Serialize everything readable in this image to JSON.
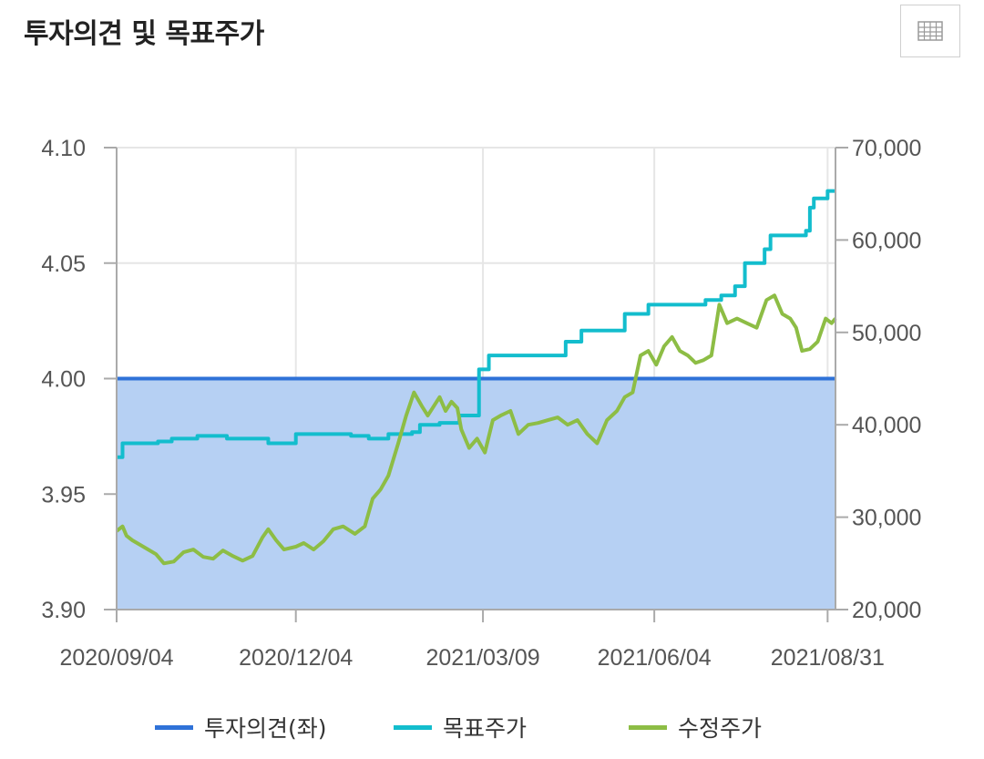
{
  "header": {
    "title": "투자의견 및 목표주가",
    "table_icon": "table-grid-icon"
  },
  "colors": {
    "opinion": "#2f72d8",
    "opinion_fill": "#b6d0f3",
    "target": "#13bdcd",
    "price": "#8dbd45",
    "grid": "#e6e6e6",
    "axis": "#aaaaaa"
  },
  "chart_data": {
    "type": "line",
    "title": "투자의견 및 목표주가",
    "x_ticks": [
      "2020/09/04",
      "2020/12/04",
      "2021/03/09",
      "2021/06/04",
      "2021/08/31"
    ],
    "x_range": [
      "2020/09/04",
      "2021/09/04"
    ],
    "y_left": {
      "ticks": [
        "4.10",
        "4.05",
        "4.00",
        "3.95",
        "3.90"
      ],
      "range": [
        3.9,
        4.1
      ]
    },
    "y_right": {
      "ticks": [
        "70,000",
        "60,000",
        "50,000",
        "40,000",
        "30,000",
        "20,000"
      ],
      "range": [
        20000,
        70000
      ]
    },
    "grid": true,
    "legend_position": "bottom",
    "series": [
      {
        "name": "투자의견(좌)",
        "axis": "left",
        "style": "area",
        "points": [
          [
            "2020/09/04",
            4.0
          ],
          [
            "2021/09/04",
            4.0
          ]
        ]
      },
      {
        "name": "목표주가",
        "axis": "right",
        "style": "step",
        "points": [
          [
            "2020/09/04",
            36500
          ],
          [
            "2020/09/07",
            38000
          ],
          [
            "2020/09/25",
            38200
          ],
          [
            "2020/10/02",
            38500
          ],
          [
            "2020/10/15",
            38800
          ],
          [
            "2020/10/30",
            38500
          ],
          [
            "2020/11/20",
            38000
          ],
          [
            "2020/12/04",
            39000
          ],
          [
            "2021/01/01",
            38800
          ],
          [
            "2021/01/10",
            38500
          ],
          [
            "2021/01/20",
            39000
          ],
          [
            "2021/02/01",
            39200
          ],
          [
            "2021/02/05",
            40000
          ],
          [
            "2021/02/15",
            40200
          ],
          [
            "2021/02/25",
            41000
          ],
          [
            "2021/03/05",
            41000
          ],
          [
            "2021/03/07",
            46000
          ],
          [
            "2021/03/12",
            47500
          ],
          [
            "2021/04/15",
            47500
          ],
          [
            "2021/04/20",
            49000
          ],
          [
            "2021/04/28",
            50200
          ],
          [
            "2021/05/20",
            52000
          ],
          [
            "2021/06/01",
            53000
          ],
          [
            "2021/06/30",
            53500
          ],
          [
            "2021/07/08",
            54000
          ],
          [
            "2021/07/15",
            55000
          ],
          [
            "2021/07/20",
            57500
          ],
          [
            "2021/07/30",
            59000
          ],
          [
            "2021/08/02",
            60500
          ],
          [
            "2021/08/20",
            61000
          ],
          [
            "2021/08/22",
            63500
          ],
          [
            "2021/08/24",
            64500
          ],
          [
            "2021/08/31",
            65300
          ],
          [
            "2021/09/04",
            65300
          ]
        ]
      },
      {
        "name": "수정주가",
        "axis": "right",
        "style": "line",
        "points": [
          [
            "2020/09/04",
            28500
          ],
          [
            "2020/09/07",
            29000
          ],
          [
            "2020/09/09",
            28000
          ],
          [
            "2020/09/12",
            27500
          ],
          [
            "2020/09/16",
            27000
          ],
          [
            "2020/09/20",
            26500
          ],
          [
            "2020/09/24",
            26000
          ],
          [
            "2020/09/28",
            25000
          ],
          [
            "2020/10/03",
            25200
          ],
          [
            "2020/10/08",
            26200
          ],
          [
            "2020/10/13",
            26500
          ],
          [
            "2020/10/18",
            25700
          ],
          [
            "2020/10/23",
            25500
          ],
          [
            "2020/10/28",
            26400
          ],
          [
            "2020/11/02",
            25800
          ],
          [
            "2020/11/07",
            25300
          ],
          [
            "2020/11/12",
            25800
          ],
          [
            "2020/11/17",
            27800
          ],
          [
            "2020/11/20",
            28700
          ],
          [
            "2020/11/24",
            27500
          ],
          [
            "2020/11/28",
            26500
          ],
          [
            "2020/12/04",
            26800
          ],
          [
            "2020/12/08",
            27200
          ],
          [
            "2020/12/13",
            26500
          ],
          [
            "2020/12/18",
            27400
          ],
          [
            "2020/12/23",
            28700
          ],
          [
            "2020/12/28",
            29000
          ],
          [
            "2021/01/03",
            28200
          ],
          [
            "2021/01/08",
            29000
          ],
          [
            "2021/01/12",
            32000
          ],
          [
            "2021/01/16",
            33000
          ],
          [
            "2021/01/20",
            34500
          ],
          [
            "2021/01/25",
            38000
          ],
          [
            "2021/01/29",
            41000
          ],
          [
            "2021/02/02",
            43500
          ],
          [
            "2021/02/06",
            42000
          ],
          [
            "2021/02/09",
            41000
          ],
          [
            "2021/02/12",
            42000
          ],
          [
            "2021/02/15",
            43000
          ],
          [
            "2021/02/18",
            41500
          ],
          [
            "2021/02/21",
            42500
          ],
          [
            "2021/02/24",
            41800
          ],
          [
            "2021/02/26",
            39500
          ],
          [
            "2021/03/02",
            37500
          ],
          [
            "2021/03/06",
            38500
          ],
          [
            "2021/03/10",
            37000
          ],
          [
            "2021/03/14",
            40500
          ],
          [
            "2021/03/18",
            41000
          ],
          [
            "2021/03/23",
            41500
          ],
          [
            "2021/03/27",
            39000
          ],
          [
            "2021/04/01",
            40000
          ],
          [
            "2021/04/06",
            40200
          ],
          [
            "2021/04/11",
            40500
          ],
          [
            "2021/04/16",
            40800
          ],
          [
            "2021/04/21",
            40000
          ],
          [
            "2021/04/26",
            40500
          ],
          [
            "2021/05/01",
            39000
          ],
          [
            "2021/05/06",
            38000
          ],
          [
            "2021/05/11",
            40500
          ],
          [
            "2021/05/16",
            41500
          ],
          [
            "2021/05/20",
            43000
          ],
          [
            "2021/05/24",
            43500
          ],
          [
            "2021/05/28",
            47500
          ],
          [
            "2021/06/01",
            48000
          ],
          [
            "2021/06/05",
            46500
          ],
          [
            "2021/06/09",
            48500
          ],
          [
            "2021/06/13",
            49500
          ],
          [
            "2021/06/17",
            48000
          ],
          [
            "2021/06/21",
            47500
          ],
          [
            "2021/06/25",
            46700
          ],
          [
            "2021/06/29",
            47000
          ],
          [
            "2021/07/03",
            47500
          ],
          [
            "2021/07/07",
            53000
          ],
          [
            "2021/07/11",
            51000
          ],
          [
            "2021/07/16",
            51500
          ],
          [
            "2021/07/21",
            51000
          ],
          [
            "2021/07/26",
            50500
          ],
          [
            "2021/07/31",
            53500
          ],
          [
            "2021/08/04",
            54000
          ],
          [
            "2021/08/08",
            52000
          ],
          [
            "2021/08/12",
            51500
          ],
          [
            "2021/08/15",
            50500
          ],
          [
            "2021/08/18",
            48000
          ],
          [
            "2021/08/22",
            48200
          ],
          [
            "2021/08/26",
            49000
          ],
          [
            "2021/08/30",
            51500
          ],
          [
            "2021/09/02",
            51000
          ],
          [
            "2021/09/04",
            51500
          ]
        ]
      }
    ]
  },
  "legend": {
    "items": [
      {
        "label": "투자의견(좌)",
        "color": "#2f72d8"
      },
      {
        "label": "목표주가",
        "color": "#13bdcd"
      },
      {
        "label": "수정주가",
        "color": "#8dbd45"
      }
    ]
  }
}
